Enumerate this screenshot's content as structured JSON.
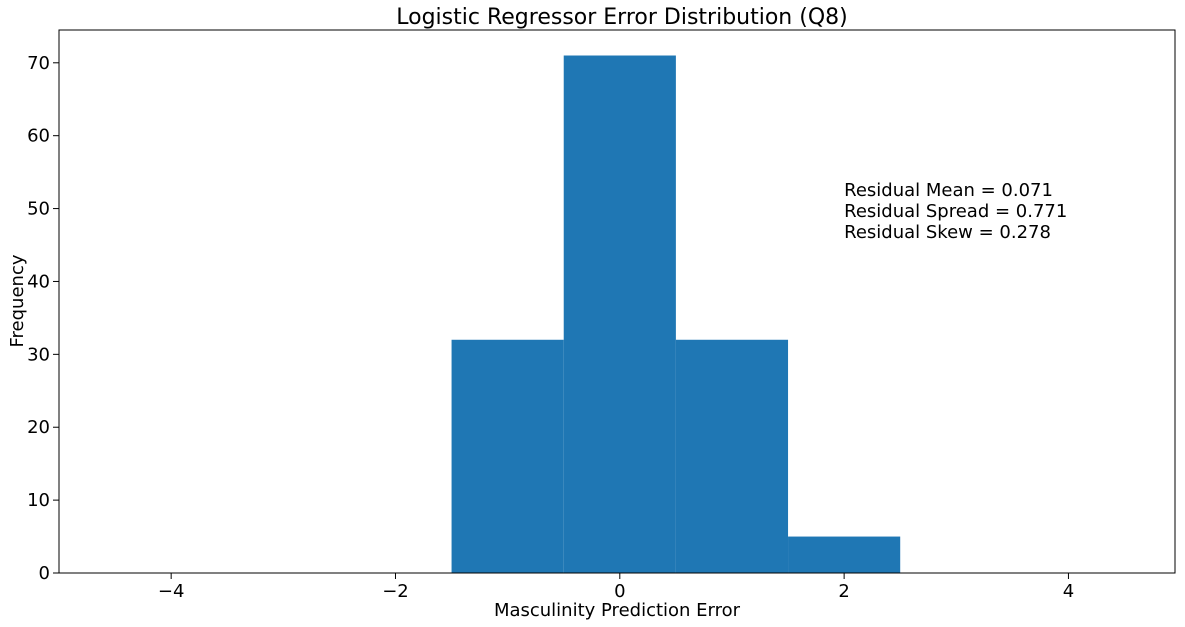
{
  "chart_data": {
    "type": "bar",
    "title": "Logistic Regressor Error Distribution (Q8)",
    "xlabel": "Masculinity Prediction Error",
    "ylabel": "Frequency",
    "xlim": [
      -5,
      4.95
    ],
    "ylim": [
      0,
      74.5
    ],
    "grid": false,
    "bar_color": "#1f77b4",
    "bins": [
      {
        "x0": -1.5,
        "x1": -0.5,
        "count": 32
      },
      {
        "x0": -0.5,
        "x1": 0.5,
        "count": 71
      },
      {
        "x0": 0.5,
        "x1": 1.5,
        "count": 32
      },
      {
        "x0": 1.5,
        "x1": 2.5,
        "count": 5
      }
    ],
    "x_ticks": [
      {
        "value": -4,
        "label": "−4"
      },
      {
        "value": -2,
        "label": "−2"
      },
      {
        "value": 0,
        "label": "0"
      },
      {
        "value": 2,
        "label": "2"
      },
      {
        "value": 4,
        "label": "4"
      }
    ],
    "y_ticks": [
      {
        "value": 0,
        "label": "0"
      },
      {
        "value": 10,
        "label": "10"
      },
      {
        "value": 20,
        "label": "20"
      },
      {
        "value": 30,
        "label": "30"
      },
      {
        "value": 40,
        "label": "40"
      },
      {
        "value": 50,
        "label": "50"
      },
      {
        "value": 60,
        "label": "60"
      },
      {
        "value": 70,
        "label": "70"
      }
    ],
    "annotation": {
      "x": 2.0,
      "y": 52,
      "lines": [
        "Residual Mean = 0.071",
        "Residual Spread = 0.771",
        "Residual Skew = 0.278"
      ]
    }
  }
}
